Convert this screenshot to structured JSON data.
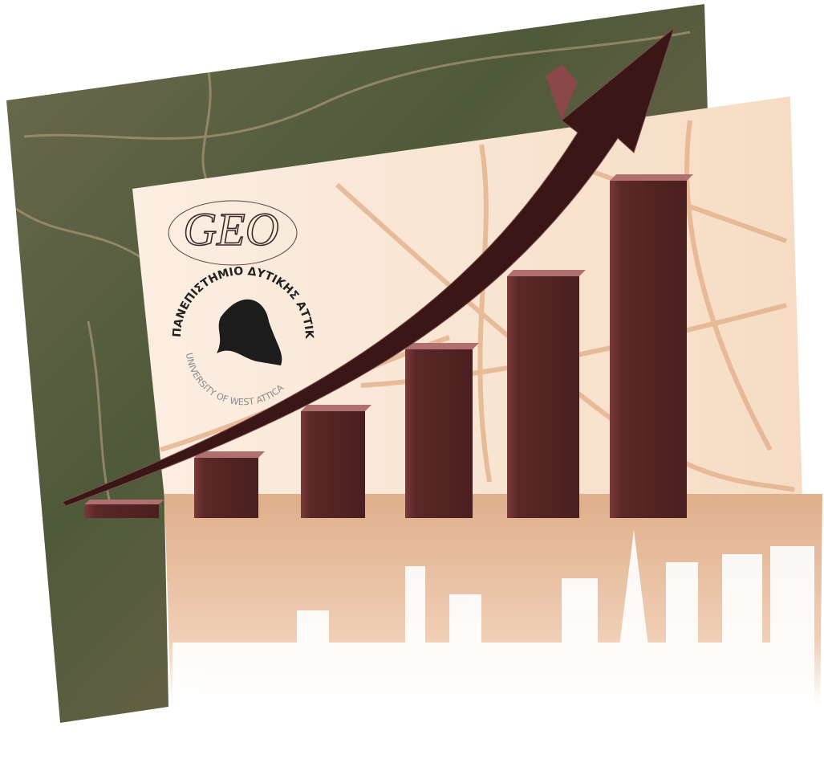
{
  "logo": {
    "title": "GEO",
    "greek_name": "ΠΑΝΕΠΙΣΤΗΜΙΟ ΔΥΤΙΚΗΣ ΑΤΤΙΚΗΣ",
    "english_name": "UNIVERSITY OF WEST ATTICA"
  }
}
